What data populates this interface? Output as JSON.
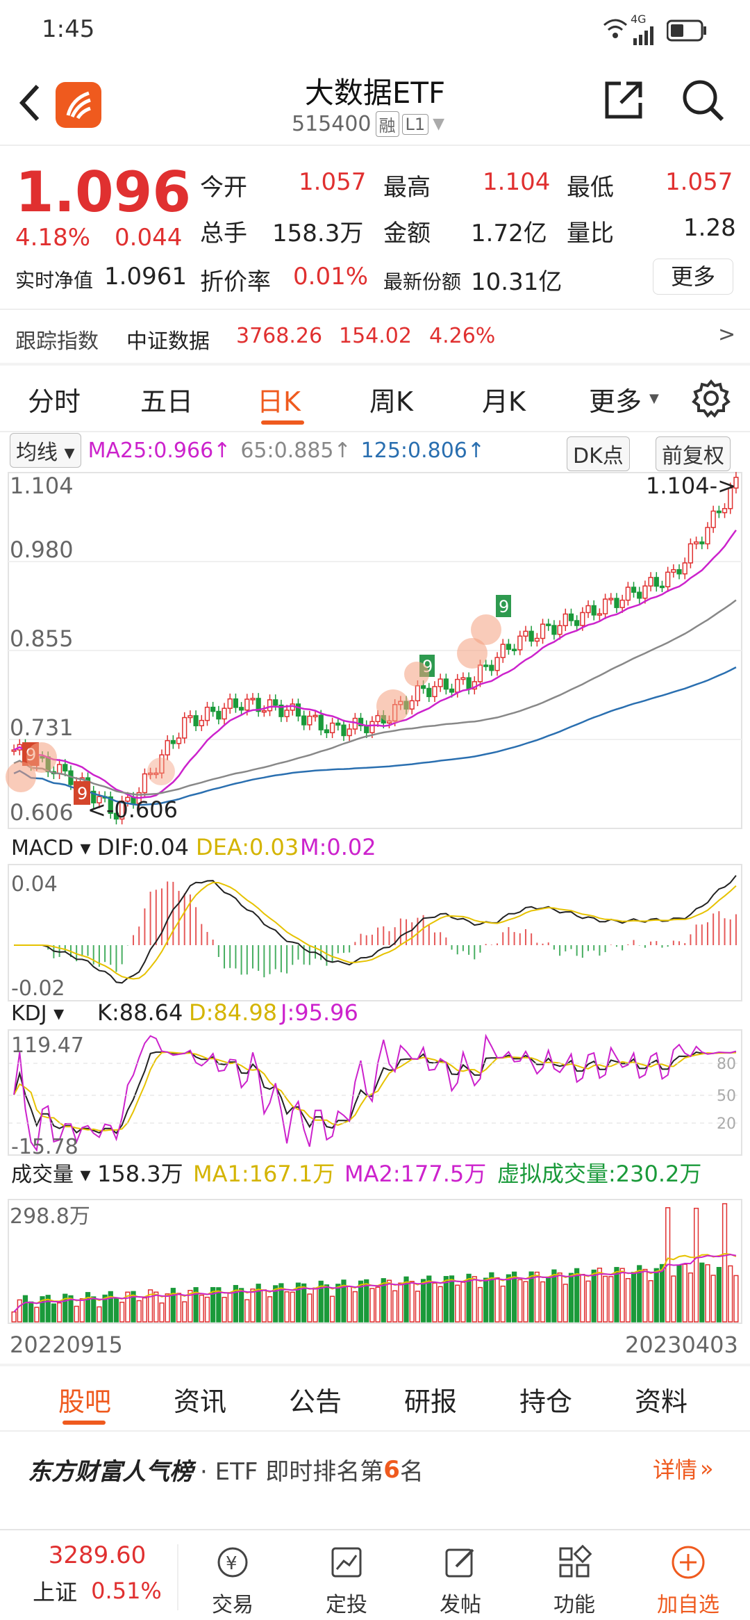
{
  "status": {
    "time": "1:45",
    "signal": "4G"
  },
  "header": {
    "title": "大数据ETF",
    "code": "515400",
    "tag_rong": "融",
    "tag_level": "L1"
  },
  "quote": {
    "price": "1.096",
    "pct": "4.18%",
    "chg": "0.044",
    "open_label": "今开",
    "open": "1.057",
    "high_label": "最高",
    "high": "1.104",
    "low_label": "最低",
    "low": "1.057",
    "vol_label": "总手",
    "vol": "158.3万",
    "amount_label": "金额",
    "amount": "1.72亿",
    "ratio_label": "量比",
    "ratio": "1.28",
    "nav_label": "实时净值",
    "nav": "1.0961",
    "discount_label": "折价率",
    "discount": "0.01%",
    "shares_label": "最新份额",
    "shares": "10.31亿",
    "more_btn": "更多",
    "track_label": "跟踪指数",
    "track_name": "中证数据",
    "track_price": "3768.26",
    "track_chg": "154.02",
    "track_pct": "4.26%"
  },
  "tabs": [
    "分时",
    "五日",
    "日K",
    "周K",
    "月K",
    "更多"
  ],
  "active_tab": "日K",
  "ma_bar": {
    "selector": "均线",
    "ma25": "MA25:0.966↑",
    "ma65": "65:0.885↑",
    "ma125": "125:0.806↑",
    "dk_btn": "DK点",
    "adjust_btn": "前复权"
  },
  "kline_labels": {
    "y1": "1.104",
    "y2": "0.980",
    "y3": "0.855",
    "y4": "0.731",
    "y5": "0.606",
    "max_note": "1.104->",
    "min_note": "<-0.606"
  },
  "macd": {
    "selector": "MACD",
    "dif": "DIF:0.04",
    "dea": "DEA:0.03",
    "m": "M:0.02",
    "top": "0.04",
    "bottom": "-0.02"
  },
  "kdj": {
    "selector": "KDJ",
    "k": "K:88.64",
    "d": "D:84.98",
    "j": "J:95.96",
    "top": "119.47",
    "bottom": "-15.78",
    "l80": "80",
    "l50": "50",
    "l20": "20"
  },
  "volume": {
    "selector": "成交量",
    "value": "158.3万",
    "ma1": "MA1:167.1万",
    "ma2": "MA2:177.5万",
    "virtual": "虚拟成交量:230.2万",
    "top": "298.8万"
  },
  "dates": {
    "start": "20220915",
    "end": "20230403"
  },
  "bottom_tabs": [
    "股吧",
    "资讯",
    "公告",
    "研报",
    "持仓",
    "资料"
  ],
  "rank": {
    "brand": "东方财富人气榜",
    "text_prefix": "· ETF 即时排名第",
    "rank_num": "6",
    "text_suffix": "名",
    "detail": "详情"
  },
  "nav": {
    "index_value": "3289.60",
    "index_name": "上证",
    "index_pct": "0.51%",
    "items": [
      "交易",
      "定投",
      "发帖",
      "功能",
      "加自选"
    ]
  },
  "colors": {
    "up": "#e03030",
    "down": "#1a9a3a",
    "accent": "#ef5a1e",
    "ma25": "#cc22cc",
    "ma65": "#888888",
    "ma125": "#2a6fb0"
  }
}
